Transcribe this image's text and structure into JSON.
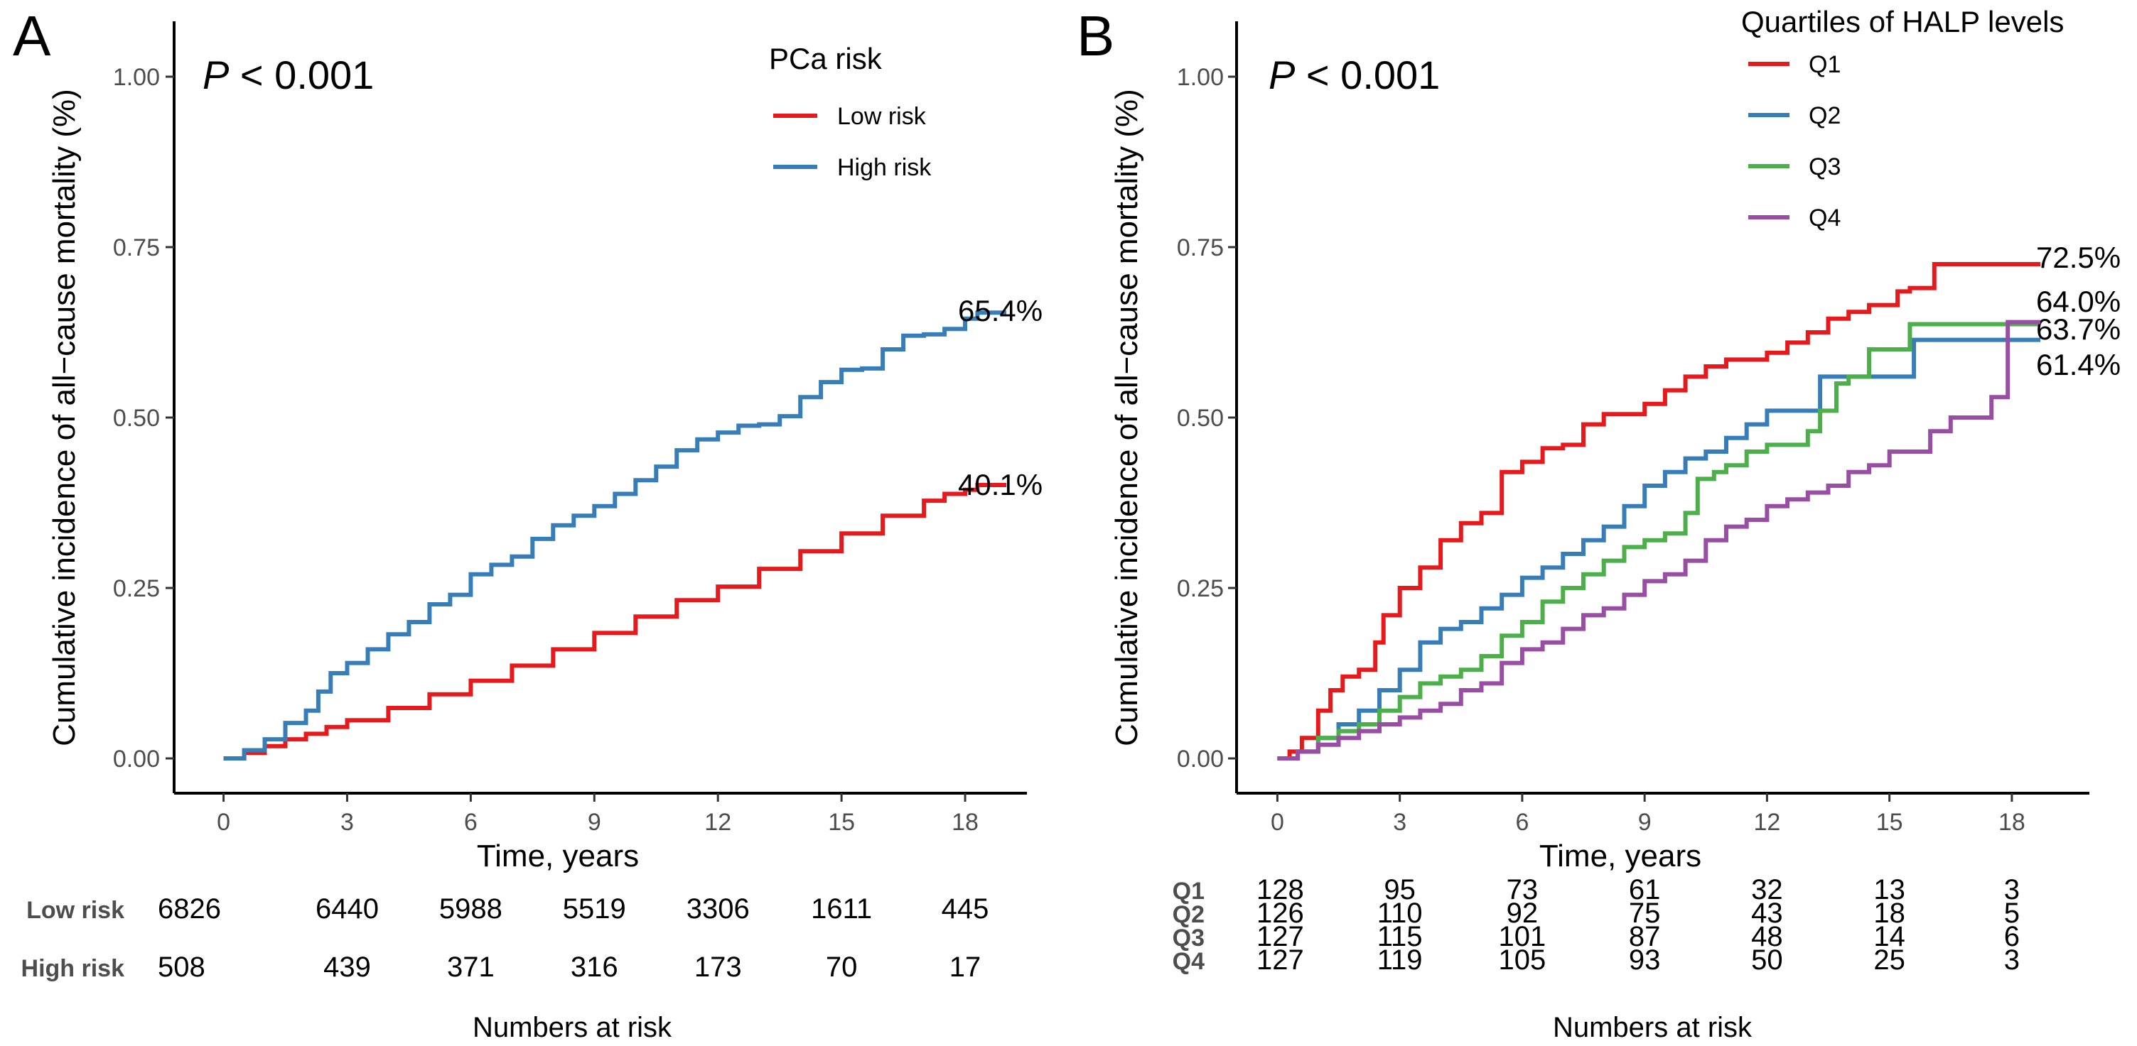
{
  "colors": {
    "red": "#e41a1c",
    "blue": "#377eb8",
    "green": "#4daf4a",
    "purple": "#984ea3"
  },
  "chart_data": [
    {
      "type": "line",
      "panel": "A",
      "p_value": "< 0.001",
      "p_label": "P",
      "xlabel": "Time, years",
      "ylabel": "Cumulative incidence of all−cause mortality (%)",
      "xlim": [
        -1.2,
        19.5
      ],
      "ylim": [
        0,
        1
      ],
      "xticks": [
        0,
        3,
        6,
        9,
        12,
        15,
        18
      ],
      "yticks": [
        "0.00",
        "0.25",
        "0.50",
        "0.75",
        "1.00"
      ],
      "legend_title": "PCa risk",
      "legend_position": "top-right",
      "series": [
        {
          "name": "Low risk",
          "color": "red",
          "end_label": "40.1%",
          "points": [
            [
              0,
              0
            ],
            [
              0.5,
              0.008
            ],
            [
              1,
              0.018
            ],
            [
              1.5,
              0.028
            ],
            [
              2,
              0.036
            ],
            [
              2.5,
              0.046
            ],
            [
              3,
              0.056
            ],
            [
              4,
              0.074
            ],
            [
              5,
              0.094
            ],
            [
              6,
              0.114
            ],
            [
              7,
              0.136
            ],
            [
              8,
              0.16
            ],
            [
              9,
              0.184
            ],
            [
              10,
              0.208
            ],
            [
              11,
              0.232
            ],
            [
              12,
              0.252
            ],
            [
              13,
              0.278
            ],
            [
              14,
              0.304
            ],
            [
              15,
              0.33
            ],
            [
              16,
              0.356
            ],
            [
              17,
              0.378
            ],
            [
              17.5,
              0.388
            ],
            [
              18,
              0.394
            ],
            [
              18.3,
              0.401
            ],
            [
              19,
              0.401
            ]
          ]
        },
        {
          "name": "High risk",
          "color": "blue",
          "end_label": "65.4%",
          "points": [
            [
              0,
              0
            ],
            [
              0.5,
              0.012
            ],
            [
              1,
              0.028
            ],
            [
              1.5,
              0.052
            ],
            [
              2,
              0.07
            ],
            [
              2.3,
              0.098
            ],
            [
              2.6,
              0.125
            ],
            [
              3,
              0.14
            ],
            [
              3.5,
              0.16
            ],
            [
              4,
              0.182
            ],
            [
              4.5,
              0.2
            ],
            [
              5,
              0.226
            ],
            [
              5.5,
              0.24
            ],
            [
              6,
              0.27
            ],
            [
              6.5,
              0.284
            ],
            [
              7,
              0.296
            ],
            [
              7.5,
              0.322
            ],
            [
              8,
              0.342
            ],
            [
              8.5,
              0.356
            ],
            [
              9,
              0.37
            ],
            [
              9.5,
              0.388
            ],
            [
              10,
              0.408
            ],
            [
              10.5,
              0.428
            ],
            [
              11,
              0.452
            ],
            [
              11.5,
              0.468
            ],
            [
              12,
              0.478
            ],
            [
              12.5,
              0.488
            ],
            [
              13,
              0.49
            ],
            [
              13.5,
              0.502
            ],
            [
              14,
              0.53
            ],
            [
              14.5,
              0.552
            ],
            [
              15,
              0.57
            ],
            [
              15.5,
              0.572
            ],
            [
              16,
              0.6
            ],
            [
              16.5,
              0.62
            ],
            [
              17,
              0.622
            ],
            [
              17.5,
              0.63
            ],
            [
              18,
              0.645
            ],
            [
              18.3,
              0.654
            ],
            [
              19,
              0.654
            ]
          ]
        }
      ],
      "risk_table": {
        "title": "Numbers at risk",
        "rows": [
          {
            "label": "Low risk",
            "values": [
              "6826",
              "6440",
              "5988",
              "5519",
              "3306",
              "1611",
              "445"
            ]
          },
          {
            "label": "High risk",
            "values": [
              "508",
              "439",
              "371",
              "316",
              "173",
              "70",
              "17"
            ]
          }
        ]
      }
    },
    {
      "type": "line",
      "panel": "B",
      "p_value": "< 0.001",
      "p_label": "P",
      "xlabel": "Time, years",
      "ylabel": "Cumulative incidence of all−cause mortality (%)",
      "xlim": [
        -1.0,
        19.9
      ],
      "ylim": [
        0,
        1
      ],
      "xticks": [
        0,
        3,
        6,
        9,
        12,
        15,
        18
      ],
      "yticks": [
        "0.00",
        "0.25",
        "0.50",
        "0.75",
        "1.00"
      ],
      "legend_title": "Quartiles of HALP levels",
      "legend_position": "top-right",
      "series": [
        {
          "name": "Q1",
          "color": "red",
          "end_label": "72.5%",
          "points": [
            [
              0,
              0
            ],
            [
              0.3,
              0.01
            ],
            [
              0.6,
              0.03
            ],
            [
              1,
              0.07
            ],
            [
              1.3,
              0.1
            ],
            [
              1.6,
              0.12
            ],
            [
              2,
              0.13
            ],
            [
              2.4,
              0.17
            ],
            [
              2.6,
              0.21
            ],
            [
              3,
              0.25
            ],
            [
              3.5,
              0.28
            ],
            [
              4,
              0.32
            ],
            [
              4.5,
              0.345
            ],
            [
              5,
              0.36
            ],
            [
              5.5,
              0.42
            ],
            [
              6,
              0.435
            ],
            [
              6.5,
              0.455
            ],
            [
              7,
              0.46
            ],
            [
              7.5,
              0.49
            ],
            [
              8,
              0.505
            ],
            [
              8.5,
              0.505
            ],
            [
              9,
              0.52
            ],
            [
              9.5,
              0.54
            ],
            [
              10,
              0.56
            ],
            [
              10.5,
              0.575
            ],
            [
              11,
              0.585
            ],
            [
              12,
              0.595
            ],
            [
              12.5,
              0.61
            ],
            [
              13,
              0.625
            ],
            [
              13.5,
              0.645
            ],
            [
              14,
              0.655
            ],
            [
              14.5,
              0.665
            ],
            [
              15.2,
              0.685
            ],
            [
              15.5,
              0.69
            ],
            [
              16.1,
              0.725
            ],
            [
              18.7,
              0.725
            ]
          ]
        },
        {
          "name": "Q2",
          "color": "blue",
          "end_label": "61.4%",
          "points": [
            [
              0,
              0
            ],
            [
              0.5,
              0.01
            ],
            [
              1,
              0.03
            ],
            [
              1.5,
              0.05
            ],
            [
              2,
              0.07
            ],
            [
              2.5,
              0.1
            ],
            [
              3,
              0.13
            ],
            [
              3.5,
              0.17
            ],
            [
              4,
              0.19
            ],
            [
              4.5,
              0.2
            ],
            [
              5,
              0.22
            ],
            [
              5.5,
              0.24
            ],
            [
              6,
              0.265
            ],
            [
              6.5,
              0.28
            ],
            [
              7,
              0.3
            ],
            [
              7.5,
              0.32
            ],
            [
              8,
              0.34
            ],
            [
              8.5,
              0.37
            ],
            [
              9,
              0.4
            ],
            [
              9.5,
              0.42
            ],
            [
              10,
              0.44
            ],
            [
              10.5,
              0.45
            ],
            [
              11,
              0.47
            ],
            [
              11.5,
              0.49
            ],
            [
              12,
              0.51
            ],
            [
              13,
              0.51
            ],
            [
              13.3,
              0.56
            ],
            [
              14,
              0.56
            ],
            [
              15.5,
              0.56
            ],
            [
              15.6,
              0.614
            ],
            [
              18.7,
              0.614
            ]
          ]
        },
        {
          "name": "Q3",
          "color": "green",
          "end_label": "63.7%",
          "points": [
            [
              0,
              0
            ],
            [
              0.5,
              0.01
            ],
            [
              1,
              0.03
            ],
            [
              1.5,
              0.04
            ],
            [
              2,
              0.05
            ],
            [
              2.5,
              0.07
            ],
            [
              3,
              0.09
            ],
            [
              3.5,
              0.11
            ],
            [
              4,
              0.12
            ],
            [
              4.5,
              0.13
            ],
            [
              5,
              0.15
            ],
            [
              5.5,
              0.18
            ],
            [
              6,
              0.2
            ],
            [
              6.5,
              0.23
            ],
            [
              7,
              0.25
            ],
            [
              7.5,
              0.27
            ],
            [
              8,
              0.29
            ],
            [
              8.5,
              0.31
            ],
            [
              9,
              0.32
            ],
            [
              9.5,
              0.33
            ],
            [
              10,
              0.36
            ],
            [
              10.3,
              0.41
            ],
            [
              10.7,
              0.42
            ],
            [
              11,
              0.43
            ],
            [
              11.5,
              0.45
            ],
            [
              12,
              0.46
            ],
            [
              13,
              0.48
            ],
            [
              13.3,
              0.51
            ],
            [
              13.7,
              0.55
            ],
            [
              14,
              0.56
            ],
            [
              14.5,
              0.6
            ],
            [
              15,
              0.6
            ],
            [
              15.5,
              0.637
            ],
            [
              18.7,
              0.637
            ]
          ]
        },
        {
          "name": "Q4",
          "color": "purple",
          "end_label": "64.0%",
          "points": [
            [
              0,
              0
            ],
            [
              0.5,
              0.01
            ],
            [
              1,
              0.02
            ],
            [
              1.5,
              0.03
            ],
            [
              2,
              0.04
            ],
            [
              2.5,
              0.05
            ],
            [
              3,
              0.06
            ],
            [
              3.5,
              0.07
            ],
            [
              4,
              0.08
            ],
            [
              4.5,
              0.1
            ],
            [
              5,
              0.11
            ],
            [
              5.5,
              0.14
            ],
            [
              6,
              0.16
            ],
            [
              6.5,
              0.17
            ],
            [
              7,
              0.19
            ],
            [
              7.5,
              0.21
            ],
            [
              8,
              0.22
            ],
            [
              8.5,
              0.24
            ],
            [
              9,
              0.26
            ],
            [
              9.5,
              0.27
            ],
            [
              10,
              0.29
            ],
            [
              10.5,
              0.32
            ],
            [
              11,
              0.34
            ],
            [
              11.5,
              0.35
            ],
            [
              12,
              0.37
            ],
            [
              12.5,
              0.38
            ],
            [
              13,
              0.39
            ],
            [
              13.5,
              0.4
            ],
            [
              14,
              0.42
            ],
            [
              14.5,
              0.43
            ],
            [
              15,
              0.45
            ],
            [
              16,
              0.48
            ],
            [
              16.5,
              0.5
            ],
            [
              17.5,
              0.53
            ],
            [
              17.9,
              0.64
            ],
            [
              18.7,
              0.64
            ]
          ]
        }
      ],
      "risk_table": {
        "title": "Numbers at risk",
        "rows": [
          {
            "label": "Q1",
            "values": [
              "128",
              "95",
              "73",
              "61",
              "32",
              "13",
              "3"
            ]
          },
          {
            "label": "Q2",
            "values": [
              "126",
              "110",
              "92",
              "75",
              "43",
              "18",
              "5"
            ]
          },
          {
            "label": "Q3",
            "values": [
              "127",
              "115",
              "101",
              "87",
              "48",
              "14",
              "6"
            ]
          },
          {
            "label": "Q4",
            "values": [
              "127",
              "119",
              "105",
              "93",
              "50",
              "25",
              "3"
            ]
          }
        ]
      }
    }
  ]
}
